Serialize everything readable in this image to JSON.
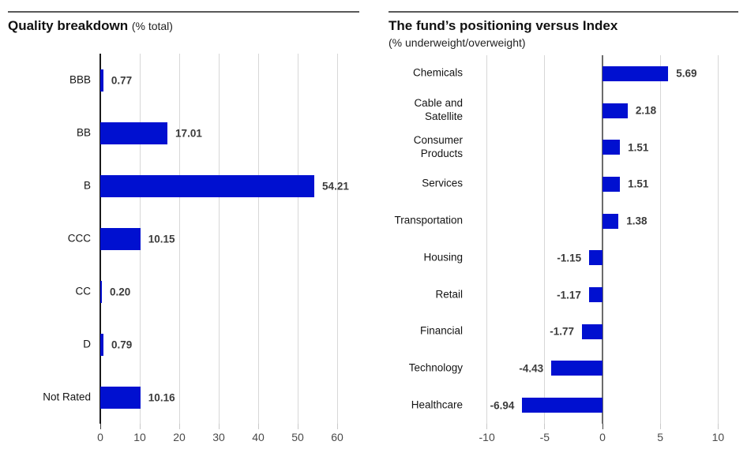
{
  "colors": {
    "bar": "#0010d0",
    "grid": "#d7d7d7",
    "left_axis": "#1a1a1a",
    "zero_line": "#6b6b6b",
    "tick": "#c9c9c9",
    "tick_zero": "#444444",
    "value_label": "#3b3b3b",
    "category_label": "#141414",
    "header_rule": "#595959"
  },
  "chart_data": [
    {
      "type": "bar",
      "orientation": "horizontal",
      "title": "Quality breakdown",
      "title_note": "(% total)",
      "subtitle": "",
      "categories": [
        "BBB",
        "BB",
        "B",
        "CCC",
        "CC",
        "D",
        "Not Rated"
      ],
      "values": [
        0.77,
        17.01,
        54.21,
        10.15,
        0.2,
        0.79,
        10.16
      ],
      "value_labels": [
        "0.77",
        "17.01",
        "54.21",
        "10.15",
        "0.20",
        "0.79",
        "10.16"
      ],
      "xlim": [
        0,
        61
      ],
      "xticks": [
        0,
        10,
        20,
        30,
        40,
        50,
        60
      ],
      "xtick_labels": [
        "0",
        "10",
        "20",
        "30",
        "40",
        "50",
        "60"
      ],
      "grid": true,
      "legend": "none"
    },
    {
      "type": "bar",
      "orientation": "horizontal",
      "title": "The fund’s positioning versus Index",
      "title_note": "",
      "subtitle": "(% underweight/overweight)",
      "categories": [
        "Chemicals",
        "Cable and\nSatellite",
        "Consumer\nProducts",
        "Services",
        "Transportation",
        "Housing",
        "Retail",
        "Financial",
        "Technology",
        "Healthcare"
      ],
      "values": [
        5.69,
        2.18,
        1.51,
        1.51,
        1.38,
        -1.15,
        -1.17,
        -1.77,
        -4.43,
        -6.94
      ],
      "value_labels": [
        "5.69",
        "2.18",
        "1.51",
        "1.51",
        "1.38",
        "-1.15",
        "-1.17",
        "-1.77",
        "-4.43",
        "-6.94"
      ],
      "xlim": [
        -11,
        11
      ],
      "xticks": [
        -10,
        -5,
        0,
        5,
        10
      ],
      "xtick_labels": [
        "-10",
        "-5",
        "0",
        "5",
        "10"
      ],
      "grid": true,
      "legend": "none"
    }
  ]
}
